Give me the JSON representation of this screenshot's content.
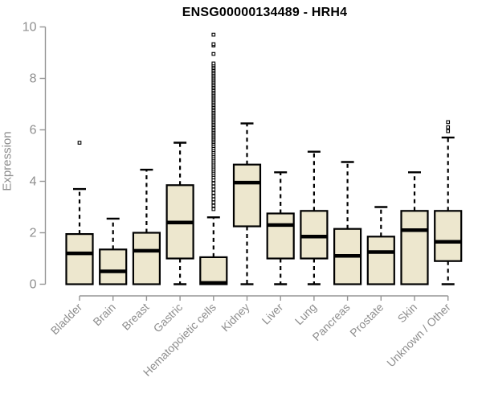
{
  "chart_data": {
    "type": "boxplot",
    "title": "ENSG00000134489 - HRH4",
    "xlabel": "",
    "ylabel": "Expression",
    "ylim": [
      0,
      10
    ],
    "yticks": [
      0,
      2,
      4,
      6,
      8,
      10
    ],
    "grid": false,
    "legend": false,
    "categories": [
      "Bladder",
      "Brain",
      "Breast",
      "Gastric",
      "Hematopoietic cells",
      "Kidney",
      "Liver",
      "Lung",
      "Pancreas",
      "Prostate",
      "Skin",
      "Unknown / Other"
    ],
    "series": [
      {
        "category": "Bladder",
        "whisker_low": 0,
        "q1": 0,
        "median": 1.2,
        "q3": 1.95,
        "whisker_high": 3.7,
        "outliers": [
          5.5
        ]
      },
      {
        "category": "Brain",
        "whisker_low": 0,
        "q1": 0,
        "median": 0.5,
        "q3": 1.35,
        "whisker_high": 2.55,
        "outliers": []
      },
      {
        "category": "Breast",
        "whisker_low": 0,
        "q1": 0,
        "median": 1.3,
        "q3": 2.0,
        "whisker_high": 4.45,
        "outliers": []
      },
      {
        "category": "Gastric",
        "whisker_low": 0,
        "q1": 1.0,
        "median": 2.4,
        "q3": 3.85,
        "whisker_high": 5.5,
        "outliers": []
      },
      {
        "category": "Hematopoietic cells",
        "whisker_low": 0,
        "q1": 0,
        "median": 0.05,
        "q3": 1.05,
        "whisker_high": 2.6,
        "outliers": [
          2.92,
          3.05,
          3.18,
          3.3,
          3.42,
          3.55,
          3.68,
          3.8,
          3.92,
          4.05,
          4.15,
          4.25,
          4.33,
          4.41,
          4.49,
          4.57,
          4.65,
          4.73,
          4.81,
          4.89,
          4.97,
          5.05,
          5.13,
          5.21,
          5.29,
          5.37,
          5.45,
          5.52,
          5.58,
          5.64,
          5.7,
          5.76,
          5.82,
          5.88,
          5.94,
          6.0,
          6.06,
          6.12,
          6.18,
          6.24,
          6.3,
          6.36,
          6.42,
          6.48,
          6.54,
          6.6,
          6.66,
          6.72,
          6.78,
          6.84,
          6.9,
          6.96,
          7.02,
          7.08,
          7.14,
          7.2,
          7.26,
          7.32,
          7.38,
          7.44,
          7.5,
          7.56,
          7.62,
          7.68,
          7.74,
          7.8,
          7.86,
          7.92,
          7.98,
          8.04,
          8.1,
          8.16,
          8.22,
          8.28,
          8.34,
          8.4,
          8.46,
          8.52,
          8.58,
          8.95,
          9.28,
          9.33,
          9.7
        ]
      },
      {
        "category": "Kidney",
        "whisker_low": 0,
        "q1": 2.25,
        "median": 3.95,
        "q3": 4.65,
        "whisker_high": 6.25,
        "outliers": []
      },
      {
        "category": "Liver",
        "whisker_low": 0,
        "q1": 1.0,
        "median": 2.3,
        "q3": 2.75,
        "whisker_high": 4.35,
        "outliers": []
      },
      {
        "category": "Lung",
        "whisker_low": 0,
        "q1": 1.0,
        "median": 1.85,
        "q3": 2.85,
        "whisker_high": 5.15,
        "outliers": []
      },
      {
        "category": "Pancreas",
        "whisker_low": 0,
        "q1": 0,
        "median": 1.1,
        "q3": 2.15,
        "whisker_high": 4.75,
        "outliers": []
      },
      {
        "category": "Prostate",
        "whisker_low": 0,
        "q1": 0,
        "median": 1.25,
        "q3": 1.85,
        "whisker_high": 3.0,
        "outliers": []
      },
      {
        "category": "Skin",
        "whisker_low": 0,
        "q1": 0,
        "median": 2.1,
        "q3": 2.85,
        "whisker_high": 4.35,
        "outliers": []
      },
      {
        "category": "Unknown / Other",
        "whisker_low": 0,
        "q1": 0.9,
        "median": 1.65,
        "q3": 2.85,
        "whisker_high": 5.7,
        "outliers": [
          5.95,
          6.1,
          6.3
        ]
      }
    ],
    "style": {
      "background": "#ffffff",
      "box_fill": "#ede7ce",
      "box_border": "#000000",
      "median_color": "#000000",
      "whisker_color": "#000000",
      "outlier_stroke": "#000000",
      "outlier_fill": "#ffffff",
      "axis_color": "#959595",
      "tick_label_color": "#8e8e8e",
      "title_color": "#000000",
      "ylabel_color": "#8e8e8e"
    }
  }
}
